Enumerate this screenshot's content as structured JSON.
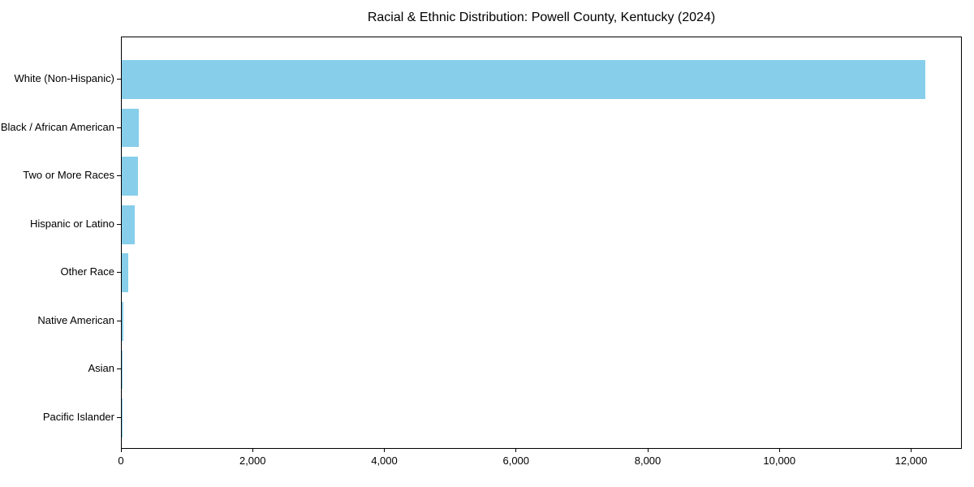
{
  "chart_data": {
    "type": "bar",
    "orientation": "horizontal",
    "title": "Racial & Ethnic Distribution: Powell County, Kentucky (2024)",
    "categories": [
      "White (Non-Hispanic)",
      "Black / African American",
      "Two or More Races",
      "Hispanic or Latino",
      "Other Race",
      "Native American",
      "Asian",
      "Pacific Islander"
    ],
    "values": [
      12200,
      260,
      250,
      200,
      100,
      30,
      10,
      5
    ],
    "bar_color": "#87CEEB",
    "xlabel": "",
    "ylabel": "",
    "xlim": [
      0,
      12770
    ],
    "x_ticks": {
      "values": [
        0,
        2000,
        4000,
        6000,
        8000,
        10000,
        12000
      ],
      "labels": [
        "0",
        "2,000",
        "4,000",
        "6,000",
        "8,000",
        "10,000",
        "12,000"
      ]
    },
    "grid": false,
    "legend": "none",
    "background_color": "#ffffff",
    "text_color": "#000000",
    "spine_color": "#000000"
  }
}
